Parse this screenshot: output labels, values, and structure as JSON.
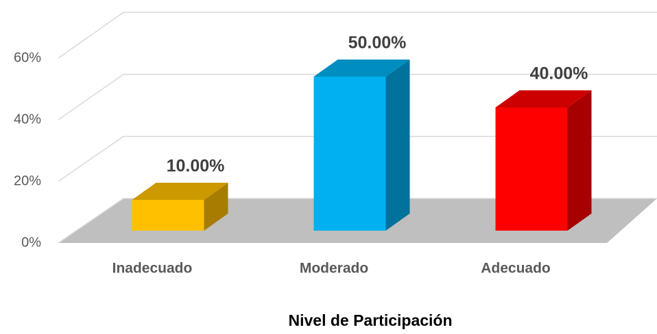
{
  "chart_data": {
    "type": "bar3d",
    "categories": [
      "Inadecuado",
      "Moderado",
      "Adecuado"
    ],
    "values": [
      10,
      50,
      40
    ],
    "value_labels": [
      "10.00%",
      "50.00%",
      "40.00%"
    ],
    "colors": [
      "#ffc000",
      "#00b0f0",
      "#ff0000"
    ],
    "ylim": [
      0,
      60
    ],
    "yticks": [
      {
        "value": 0,
        "label": "0%"
      },
      {
        "value": 20,
        "label": "20%"
      },
      {
        "value": 40,
        "label": "40%"
      },
      {
        "value": 60,
        "label": "60%"
      }
    ],
    "grid": true,
    "xlabel": "Nivel de Participación"
  }
}
